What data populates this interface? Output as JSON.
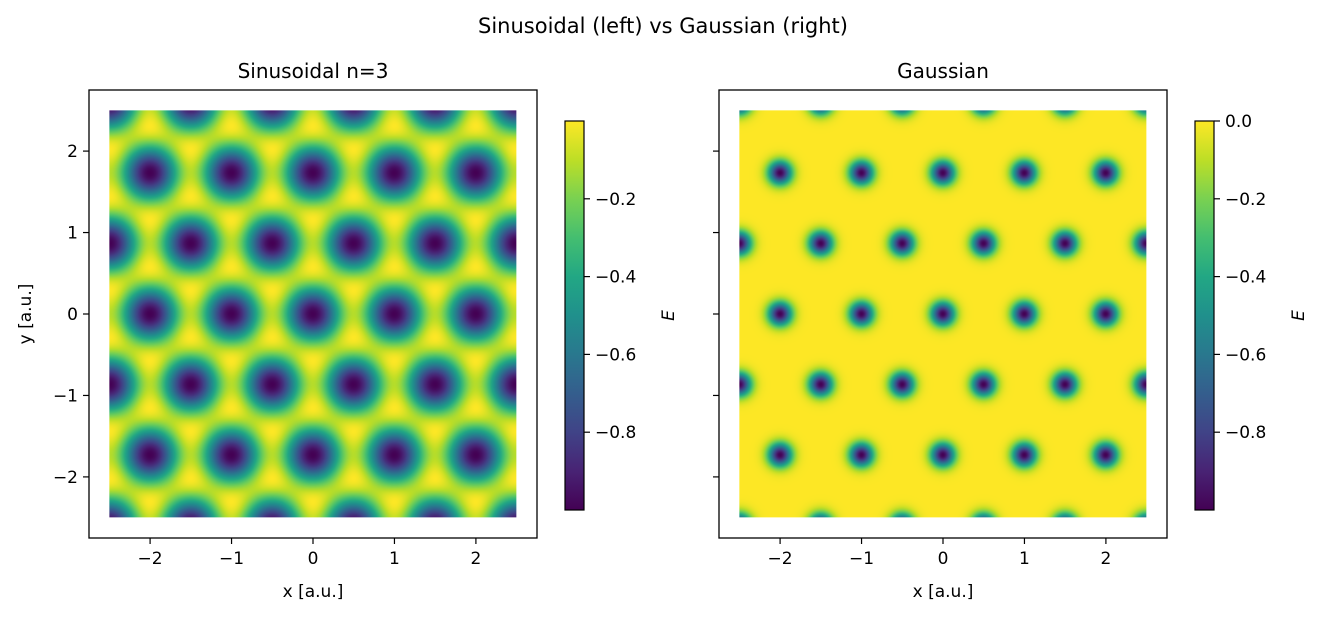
{
  "figure": {
    "suptitle": "Sinusoidal (left) vs Gaussian (right)"
  },
  "chart_data": [
    {
      "type": "heatmap",
      "title": "Sinusoidal n=3",
      "xlabel": "x  [a.u.]",
      "ylabel": "y  [a.u.]",
      "xlim": [
        -2.75,
        2.75
      ],
      "ylim": [
        -2.75,
        2.75
      ],
      "data_extent": [
        -2.5,
        2.5,
        -2.5,
        2.5
      ],
      "xticks": [
        -2,
        -1,
        0,
        1,
        2
      ],
      "yticks": [
        -2,
        -1,
        0,
        1,
        2
      ],
      "xtick_labels": [
        "−2",
        "−1",
        "0",
        "1",
        "2"
      ],
      "ytick_labels": [
        "−2",
        "−1",
        "0",
        "1",
        "2"
      ],
      "show_ytick_labels": true,
      "field": "sinusoidal",
      "lattice": {
        "a": 1.0,
        "n": 3,
        "minimum_at": [
          0,
          0
        ],
        "minima_value": -1.0
      },
      "value_range": [
        -1.0,
        0.0
      ],
      "colormap": "viridis",
      "colorbar": {
        "label": "E",
        "range": [
          -1.0,
          0.0
        ],
        "ticks": [
          -0.2,
          -0.4,
          -0.6,
          -0.8
        ],
        "tick_labels": [
          "−0.2",
          "−0.4",
          "−0.6",
          "−0.8"
        ]
      }
    },
    {
      "type": "heatmap",
      "title": "Gaussian",
      "xlabel": "x  [a.u.]",
      "ylabel": "",
      "xlim": [
        -2.75,
        2.75
      ],
      "ylim": [
        -2.75,
        2.75
      ],
      "data_extent": [
        -2.5,
        2.5,
        -2.5,
        2.5
      ],
      "xticks": [
        -2,
        -1,
        0,
        1,
        2
      ],
      "yticks": [
        -2,
        -1,
        0,
        1,
        2
      ],
      "xtick_labels": [
        "−2",
        "−1",
        "0",
        "1",
        "2"
      ],
      "ytick_labels": [
        "",
        "",
        "",
        "",
        ""
      ],
      "show_ytick_labels": false,
      "field": "gaussian",
      "lattice": {
        "a": 1.0,
        "sigma": 0.1,
        "minimum_at": [
          0,
          0
        ],
        "minima_value": -1.0
      },
      "value_range": [
        -1.0,
        0.0
      ],
      "colormap": "viridis",
      "colorbar": {
        "label": "E",
        "range": [
          -1.0,
          0.0
        ],
        "ticks": [
          0.0,
          -0.2,
          -0.4,
          -0.6,
          -0.8
        ],
        "tick_labels": [
          "0.0",
          "−0.2",
          "−0.4",
          "−0.6",
          "−0.8"
        ]
      }
    }
  ]
}
